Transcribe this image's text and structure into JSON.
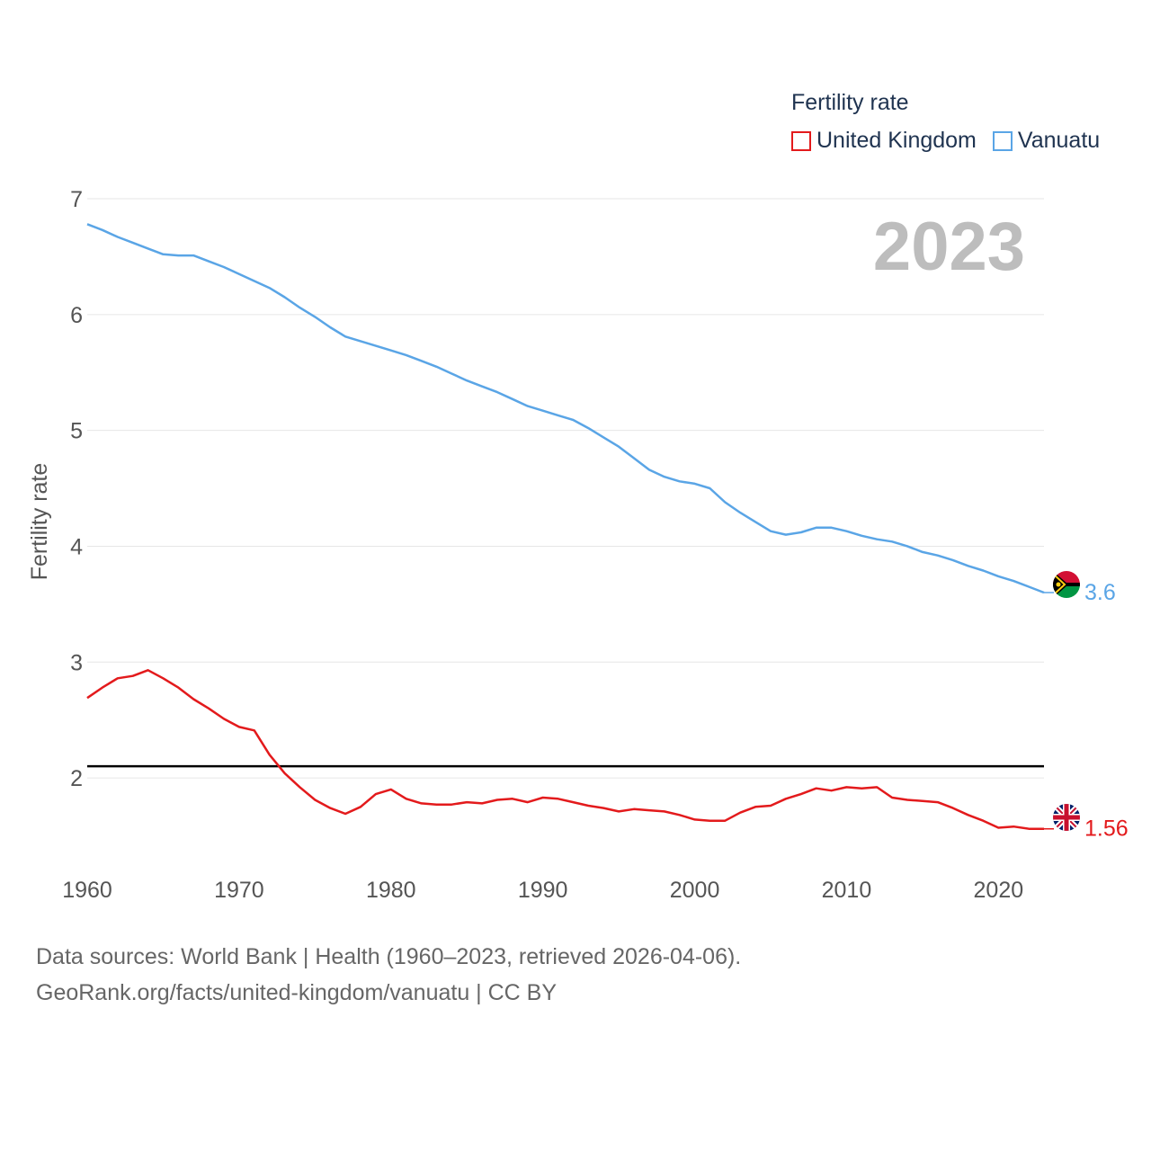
{
  "legend": {
    "title": "Fertility rate",
    "items": [
      {
        "label": "United Kingdom",
        "color": "#e31a1c"
      },
      {
        "label": "Vanuatu",
        "color": "#5aa5e6"
      }
    ]
  },
  "footer": {
    "line1": "Data sources: World Bank | Health (1960–2023, retrieved 2026-04-06).",
    "line2": "GeoRank.org/facts/united-kingdom/vanuatu | CC BY"
  },
  "chart_data": {
    "type": "line",
    "title": "Fertility rate",
    "year_label": "2023",
    "xlabel": "",
    "ylabel": "Fertility rate",
    "xlim": [
      1960,
      2023
    ],
    "ylim": [
      1.1,
      7
    ],
    "x_ticks": [
      1960,
      1970,
      1980,
      1990,
      2000,
      2010,
      2020
    ],
    "y_ticks": [
      2,
      3,
      4,
      5,
      6,
      7
    ],
    "grid": true,
    "reference_line": {
      "y": 2.1,
      "color": "#000000"
    },
    "x": [
      1960,
      1961,
      1962,
      1963,
      1964,
      1965,
      1966,
      1967,
      1968,
      1969,
      1970,
      1971,
      1972,
      1973,
      1974,
      1975,
      1976,
      1977,
      1978,
      1979,
      1980,
      1981,
      1982,
      1983,
      1984,
      1985,
      1986,
      1987,
      1988,
      1989,
      1990,
      1991,
      1992,
      1993,
      1994,
      1995,
      1996,
      1997,
      1998,
      1999,
      2000,
      2001,
      2002,
      2003,
      2004,
      2005,
      2006,
      2007,
      2008,
      2009,
      2010,
      2011,
      2012,
      2013,
      2014,
      2015,
      2016,
      2017,
      2018,
      2019,
      2020,
      2021,
      2022,
      2023
    ],
    "series": [
      {
        "name": "United Kingdom",
        "color": "#e31a1c",
        "end_label": "1.56",
        "values": [
          2.69,
          2.78,
          2.86,
          2.88,
          2.93,
          2.86,
          2.78,
          2.68,
          2.6,
          2.51,
          2.44,
          2.41,
          2.2,
          2.04,
          1.92,
          1.81,
          1.74,
          1.69,
          1.75,
          1.86,
          1.9,
          1.82,
          1.78,
          1.77,
          1.77,
          1.79,
          1.78,
          1.81,
          1.82,
          1.79,
          1.83,
          1.82,
          1.79,
          1.76,
          1.74,
          1.71,
          1.73,
          1.72,
          1.71,
          1.68,
          1.64,
          1.63,
          1.63,
          1.7,
          1.75,
          1.76,
          1.82,
          1.86,
          1.91,
          1.89,
          1.92,
          1.91,
          1.92,
          1.83,
          1.81,
          1.8,
          1.79,
          1.74,
          1.68,
          1.63,
          1.57,
          1.58,
          1.56,
          1.56
        ]
      },
      {
        "name": "Vanuatu",
        "color": "#5aa5e6",
        "end_label": "3.6",
        "values": [
          6.78,
          6.73,
          6.67,
          6.62,
          6.57,
          6.52,
          6.51,
          6.51,
          6.46,
          6.41,
          6.35,
          6.29,
          6.23,
          6.15,
          6.06,
          5.98,
          5.89,
          5.81,
          5.77,
          5.73,
          5.69,
          5.65,
          5.6,
          5.55,
          5.49,
          5.43,
          5.38,
          5.33,
          5.27,
          5.21,
          5.17,
          5.13,
          5.09,
          5.02,
          4.94,
          4.86,
          4.76,
          4.66,
          4.6,
          4.56,
          4.54,
          4.5,
          4.38,
          4.29,
          4.21,
          4.13,
          4.1,
          4.12,
          4.16,
          4.16,
          4.13,
          4.09,
          4.06,
          4.04,
          4.0,
          3.95,
          3.92,
          3.88,
          3.83,
          3.79,
          3.74,
          3.7,
          3.65,
          3.6
        ]
      }
    ]
  },
  "source_text": ""
}
